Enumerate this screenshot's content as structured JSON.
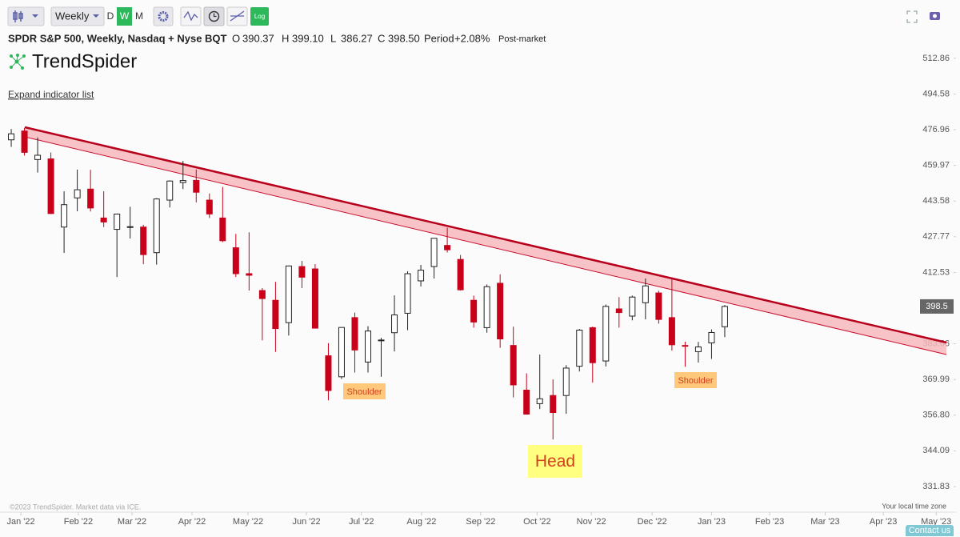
{
  "header": {
    "interval": "Weekly",
    "periods": [
      "D",
      "W",
      "M"
    ],
    "log_button": "Log",
    "symbol_title": "SPDR S&P 500, Weekly, Nasdaq + Nyse BQT",
    "readout": [
      [
        "O",
        "390.37"
      ],
      [
        "H",
        "399.10"
      ],
      [
        "L",
        "386.27"
      ],
      [
        "C",
        "398.50"
      ]
    ],
    "period_label": "Period",
    "period_change": "+2.08%",
    "session": "Post-market",
    "logo": "TrendSpider",
    "expand_link": "Expand indicator list"
  },
  "chart_data": {
    "type": "candlestick",
    "log_scale": true,
    "grid": false,
    "up_color": "#ffffff",
    "down_color": "#c8001a",
    "ylim": [
      324.6,
      528.9
    ],
    "yticks": [
      512.86,
      494.58,
      476.96,
      459.97,
      443.58,
      427.77,
      412.53,
      383.66,
      369.99,
      {
        "value": 356.8,
        "label": "356.80"
      },
      344.09,
      331.83
    ],
    "xlim": [
      -0.85,
      71.5
    ],
    "xticks": [
      {
        "value": 0.73,
        "label": "Jan '22"
      },
      {
        "value": 5.08,
        "label": "Feb '22"
      },
      {
        "value": 9.14,
        "label": "Mar '22"
      },
      {
        "value": 13.68,
        "label": "Apr '22"
      },
      {
        "value": 17.92,
        "label": "May '22"
      },
      {
        "value": 22.34,
        "label": "Jun '22"
      },
      {
        "value": 26.5,
        "label": "Jul '22"
      },
      {
        "value": 31.05,
        "label": "Aug '22"
      },
      {
        "value": 35.53,
        "label": "Sep '22"
      },
      {
        "value": 39.8,
        "label": "Oct '22"
      },
      {
        "value": 43.9,
        "label": "Nov '22"
      },
      {
        "value": 48.5,
        "label": "Dec '22"
      },
      {
        "value": 53.0,
        "label": "Jan '23"
      },
      {
        "value": 57.4,
        "label": "Feb '23"
      },
      {
        "value": 61.6,
        "label": "Mar '23"
      },
      {
        "value": 66.0,
        "label": "Apr '23"
      },
      {
        "value": 70.0,
        "label": "May '23"
      }
    ],
    "open": [
      472.06,
      476.3,
      462.7,
      463.0,
      432.0,
      445.0,
      449.0,
      436.0,
      431.0,
      432.0,
      432.0,
      420.9,
      444.0,
      452.0,
      453.0,
      444.0,
      436.0,
      423.0,
      412.0,
      405.0,
      401.0,
      392.0,
      415.0,
      414.0,
      379.0,
      371.0,
      394.0,
      376.6,
      385.0,
      388.0,
      395.75,
      409.0,
      415.0,
      424.0,
      418.0,
      401.0,
      390.0,
      408.0,
      383.0,
      366.0,
      361.0,
      364.0,
      364.0,
      375.0,
      390.0,
      377.0,
      397.5,
      394.6,
      400.0,
      404.0,
      394.0,
      383.0,
      380.6,
      384.0,
      390.37
    ],
    "high": [
      477.3,
      477.85,
      473.2,
      466.0,
      448.0,
      458.0,
      457.9,
      448.0,
      438.0,
      441.0,
      433.0,
      444.9,
      452.98,
      462.0,
      458.0,
      447.0,
      450.0,
      429.0,
      429.7,
      406.0,
      408.6,
      415.4,
      417.4,
      416.0,
      383.9,
      390.0,
      396.0,
      390.6,
      386.0,
      403.0,
      413.0,
      415.7,
      427.2,
      431.7,
      419.9,
      402.9,
      407.5,
      411.7,
      390.4,
      372.3,
      379.5,
      370.0,
      375.4,
      389.5,
      390.4,
      399.3,
      402.3,
      402.9,
      410.0,
      404.9,
      410.5,
      384.5,
      384.4,
      389.3,
      399.1
    ],
    "low": [
      468.7,
      464.6,
      456.6,
      437.8,
      420.8,
      439.0,
      438.9,
      432.0,
      410.6,
      427.0,
      416.0,
      415.8,
      440.7,
      449.0,
      443.0,
      436.0,
      425.4,
      410.6,
      405.0,
      385.0,
      380.5,
      386.9,
      406.0,
      389.75,
      362.2,
      370.2,
      372.6,
      372.6,
      371.0,
      380.7,
      389.0,
      406.7,
      410.0,
      421.0,
      405.0,
      390.0,
      388.0,
      382.1,
      363.3,
      357.0,
      359.0,
      348.1,
      357.3,
      373.0,
      368.8,
      374.9,
      390.0,
      392.9,
      393.3,
      391.6,
      381.0,
      374.8,
      376.4,
      377.8,
      386.27
    ],
    "close": [
      474.96,
      466.09,
      464.72,
      437.98,
      441.95,
      448.7,
      440.46,
      434.23,
      437.75,
      432.17,
      420.07,
      444.52,
      452.69,
      452.92,
      447.57,
      437.79,
      426.04,
      412.0,
      411.34,
      401.72,
      389.63,
      415.26,
      410.54,
      389.8,
      365.86,
      390.08,
      381.24,
      388.67,
      385.13,
      395.09,
      411.99,
      413.47,
      427.1,
      422.14,
      405.31,
      392.24,
      406.6,
      385.56,
      367.95,
      357.18,
      362.79,
      357.74,
      374.29,
      389.02,
      376.35,
      398.51,
      396.03,
      402.33,
      406.91,
      393.28,
      383.27,
      382.91,
      382.43,
      388.08,
      398.5
    ],
    "last_price_label": "398.5",
    "annotations": [
      {
        "text": "Shoulder"
      },
      {
        "text": "Head"
      },
      {
        "text": "Shoulder"
      }
    ],
    "footer_left": "©2023 TrendSpider. Market data via ICE.",
    "footer_right": "Your local time zone"
  },
  "contact": "Contact us"
}
